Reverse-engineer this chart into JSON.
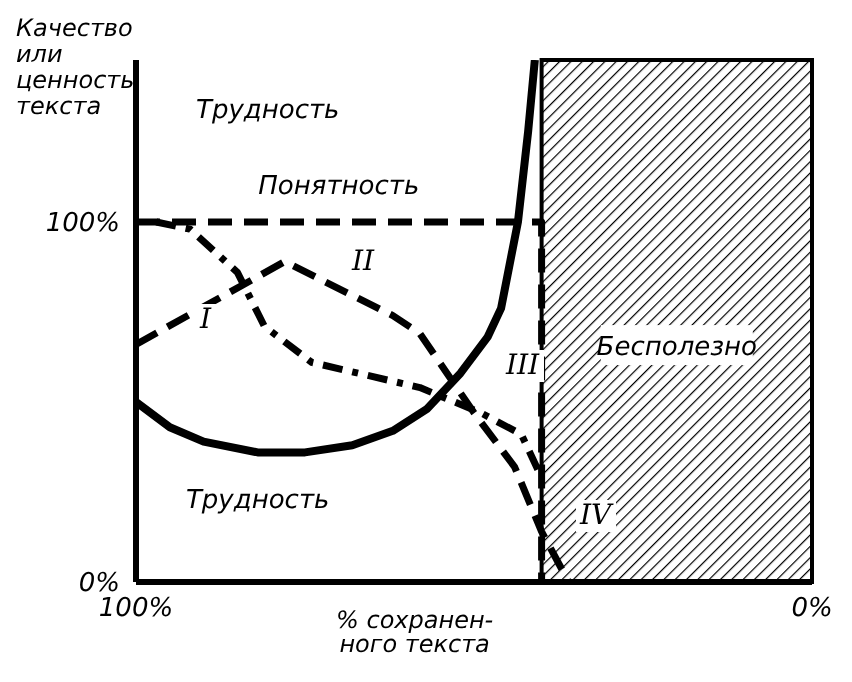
{
  "chart_data": {
    "type": "line",
    "ylabel": "Качество или ценность текста",
    "xlabel": "% сохранен-\nного текста",
    "xlim": [
      100,
      0
    ],
    "xticks": [
      {
        "value": 100,
        "label": "100%"
      },
      {
        "value": 0,
        "label": "0%"
      }
    ],
    "ylim": [
      0,
      145
    ],
    "yticks": [
      {
        "value": 0,
        "label": "0%"
      },
      {
        "value": 100,
        "label": "100%"
      }
    ],
    "grid": false,
    "legend": false,
    "marker": "none",
    "series": [
      {
        "name": "Понятность",
        "color": "#000000",
        "line_style": "dashed",
        "x": [
          100,
          40,
          40
        ],
        "values": [
          100,
          100,
          0
        ]
      },
      {
        "name": "Трудность",
        "color": "#000000",
        "line_style": "solid",
        "x": [
          100,
          95,
          90,
          82,
          75,
          68,
          62,
          57,
          52,
          48,
          46,
          43.5,
          42,
          41
        ],
        "values": [
          50,
          43,
          39,
          36,
          36,
          38,
          42,
          48,
          58,
          68,
          76,
          100,
          125,
          145
        ]
      },
      {
        "color": "#000000",
        "line_style": "dotted",
        "x": [
          97,
          92,
          85,
          81,
          74,
          58,
          49,
          43,
          40
        ],
        "values": [
          100,
          98,
          86,
          71,
          61,
          54,
          47,
          41,
          29
        ]
      },
      {
        "color": "#000000",
        "line_style": "dashed",
        "x": [
          100,
          78,
          62,
          58,
          50,
          44,
          40,
          36
        ],
        "values": [
          66,
          89,
          74,
          69,
          47,
          32,
          14,
          0
        ]
      }
    ],
    "bands": [
      {
        "axis": "x",
        "from": 40,
        "to": 0,
        "label": "Бесполезно",
        "color": "#000000"
      }
    ],
    "annotations": [
      "Трудность",
      "I",
      "II",
      "III",
      "IV"
    ]
  }
}
